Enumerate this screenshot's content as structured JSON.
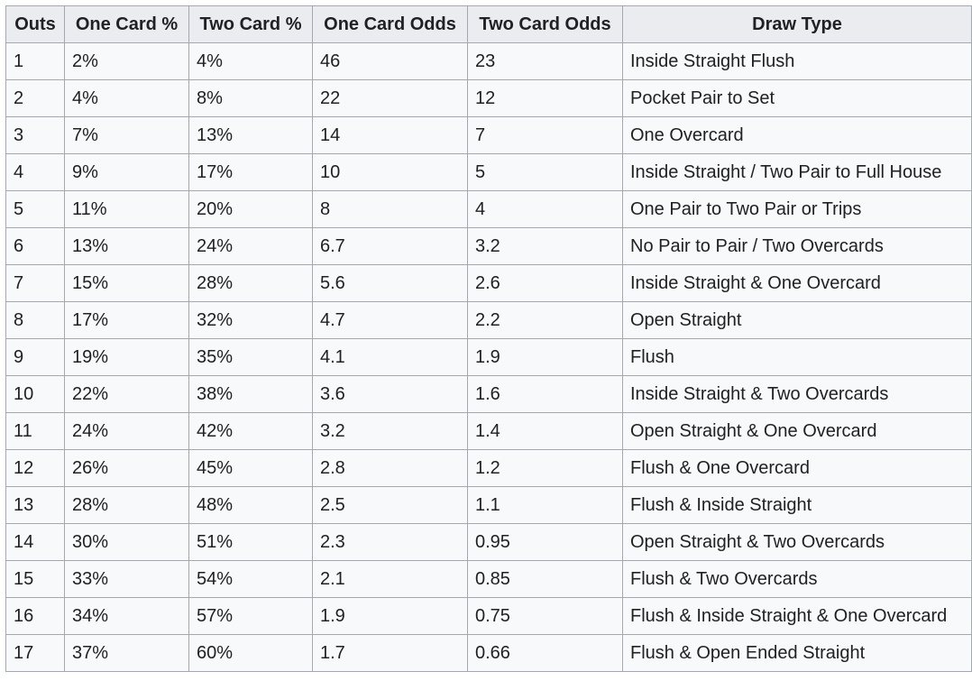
{
  "table": {
    "headers": [
      "Outs",
      "One Card %",
      "Two Card %",
      "One Card Odds",
      "Two Card Odds",
      "Draw Type"
    ],
    "rows": [
      [
        "1",
        "2%",
        "4%",
        "46",
        "23",
        "Inside Straight Flush"
      ],
      [
        "2",
        "4%",
        "8%",
        "22",
        "12",
        "Pocket Pair to Set"
      ],
      [
        "3",
        "7%",
        "13%",
        "14",
        "7",
        "One Overcard"
      ],
      [
        "4",
        "9%",
        "17%",
        "10",
        "5",
        "Inside Straight / Two Pair to Full House"
      ],
      [
        "5",
        "11%",
        "20%",
        "8",
        "4",
        "One Pair to Two Pair or Trips"
      ],
      [
        "6",
        "13%",
        "24%",
        "6.7",
        "3.2",
        "No Pair to Pair / Two Overcards"
      ],
      [
        "7",
        "15%",
        "28%",
        "5.6",
        "2.6",
        "Inside Straight & One Overcard"
      ],
      [
        "8",
        "17%",
        "32%",
        "4.7",
        "2.2",
        "Open Straight"
      ],
      [
        "9",
        "19%",
        "35%",
        "4.1",
        "1.9",
        "Flush"
      ],
      [
        "10",
        "22%",
        "38%",
        "3.6",
        "1.6",
        "Inside Straight & Two Overcards"
      ],
      [
        "11",
        "24%",
        "42%",
        "3.2",
        "1.4",
        "Open Straight & One Overcard"
      ],
      [
        "12",
        "26%",
        "45%",
        "2.8",
        "1.2",
        "Flush & One Overcard"
      ],
      [
        "13",
        "28%",
        "48%",
        "2.5",
        "1.1",
        "Flush & Inside Straight"
      ],
      [
        "14",
        "30%",
        "51%",
        "2.3",
        "0.95",
        "Open Straight & Two Overcards"
      ],
      [
        "15",
        "33%",
        "54%",
        "2.1",
        "0.85",
        "Flush & Two Overcards"
      ],
      [
        "16",
        "34%",
        "57%",
        "1.9",
        "0.75",
        "Flush & Inside Straight & One Overcard"
      ],
      [
        "17",
        "37%",
        "60%",
        "1.7",
        "0.66",
        "Flush & Open Ended Straight"
      ]
    ]
  },
  "colors": {
    "header_bg": "#eaecf0",
    "cell_bg": "#f8f9fa",
    "border": "#a2a9b1",
    "text": "#202122"
  }
}
